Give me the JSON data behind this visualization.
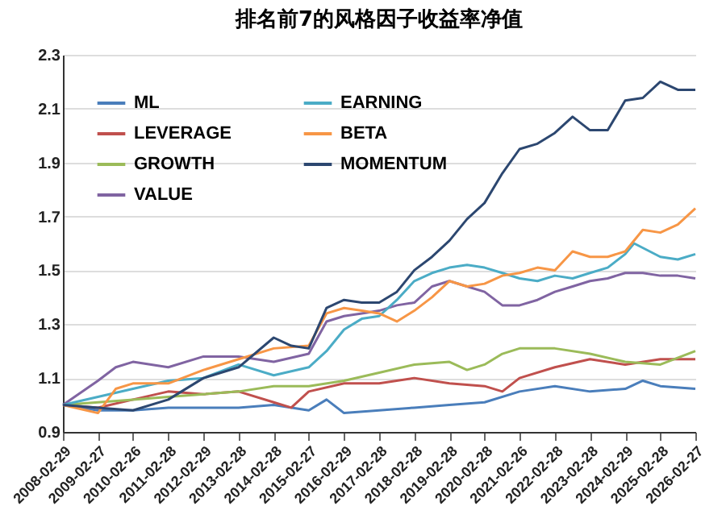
{
  "chart_data": {
    "type": "line",
    "title": "排名前7的风格因子收益率净值",
    "xlim": [
      "2008-02-29",
      "2026-02-27"
    ],
    "xticks": [
      "2008-02-29",
      "2009-02-27",
      "2010-02-26",
      "2011-02-28",
      "2012-02-29",
      "2013-02-28",
      "2014-02-28",
      "2015-02-27",
      "2016-02-29",
      "2017-02-28",
      "2018-02-28",
      "2019-02-28",
      "2020-02-28",
      "2021-02-26",
      "2022-02-28",
      "2023-02-28",
      "2024-02-29",
      "2025-02-28",
      "2026-02-27"
    ],
    "ylim": [
      0.9,
      2.3
    ],
    "yticks": [
      0.9,
      1.1,
      1.3,
      1.5,
      1.7,
      1.9,
      2.1,
      2.3
    ],
    "grid": "y",
    "legend": "top left",
    "line_style": "solid",
    "marker": "none",
    "series": [
      {
        "name": "ML",
        "color": "#4a7ebb",
        "x": [
          "2008-02-29",
          "2009-02-27",
          "2010-02-26",
          "2011-02-28",
          "2012-02-29",
          "2013-02-28",
          "2014-02-28",
          "2015-02-27",
          "2015-08-31",
          "2016-02-29",
          "2017-02-28",
          "2018-02-28",
          "2019-02-28",
          "2020-02-28",
          "2021-02-26",
          "2022-02-28",
          "2023-02-28",
          "2024-02-29",
          "2024-08-30",
          "2025-02-28",
          "2026-02-27"
        ],
        "values": [
          1.0,
          0.98,
          0.98,
          0.99,
          0.99,
          0.99,
          1.0,
          0.98,
          1.02,
          0.97,
          0.98,
          0.99,
          1.0,
          1.01,
          1.05,
          1.07,
          1.05,
          1.06,
          1.09,
          1.07,
          1.06
        ]
      },
      {
        "name": "LEVERAGE",
        "color": "#c0504d",
        "x": [
          "2008-02-29",
          "2009-02-27",
          "2010-02-26",
          "2011-02-28",
          "2012-02-29",
          "2013-02-28",
          "2014-02-28",
          "2014-08-29",
          "2015-02-27",
          "2016-02-29",
          "2017-02-28",
          "2018-02-28",
          "2019-02-28",
          "2020-02-28",
          "2020-08-31",
          "2021-02-26",
          "2022-02-28",
          "2023-02-28",
          "2024-02-29",
          "2025-02-28",
          "2026-02-27"
        ],
        "values": [
          1.0,
          0.99,
          1.02,
          1.05,
          1.04,
          1.05,
          1.01,
          0.99,
          1.05,
          1.08,
          1.08,
          1.1,
          1.08,
          1.07,
          1.05,
          1.1,
          1.14,
          1.17,
          1.15,
          1.17,
          1.17
        ]
      },
      {
        "name": "GROWTH",
        "color": "#9bbb59",
        "x": [
          "2008-02-29",
          "2009-02-27",
          "2010-02-26",
          "2011-02-28",
          "2012-02-29",
          "2013-02-28",
          "2014-02-28",
          "2015-02-27",
          "2016-02-29",
          "2017-02-28",
          "2018-02-28",
          "2019-02-28",
          "2019-08-30",
          "2020-02-28",
          "2020-08-31",
          "2021-02-26",
          "2022-02-28",
          "2023-02-28",
          "2024-02-29",
          "2025-02-28",
          "2026-02-27"
        ],
        "values": [
          1.0,
          1.01,
          1.02,
          1.03,
          1.04,
          1.05,
          1.07,
          1.07,
          1.09,
          1.12,
          1.15,
          1.16,
          1.13,
          1.15,
          1.19,
          1.21,
          1.21,
          1.19,
          1.16,
          1.15,
          1.2
        ]
      },
      {
        "name": "VALUE",
        "color": "#8064a2",
        "x": [
          "2008-02-29",
          "2009-02-27",
          "2009-08-31",
          "2010-02-26",
          "2011-02-28",
          "2012-02-29",
          "2013-02-28",
          "2014-02-28",
          "2015-02-27",
          "2015-08-31",
          "2016-02-29",
          "2016-08-31",
          "2017-02-28",
          "2017-08-31",
          "2018-02-28",
          "2018-08-31",
          "2019-02-28",
          "2019-08-30",
          "2020-02-28",
          "2020-08-31",
          "2021-02-26",
          "2021-08-31",
          "2022-02-28",
          "2022-08-31",
          "2023-02-28",
          "2023-08-31",
          "2024-02-29",
          "2024-08-30",
          "2025-02-28",
          "2025-08-29",
          "2026-02-27"
        ],
        "values": [
          1.0,
          1.09,
          1.14,
          1.16,
          1.14,
          1.18,
          1.18,
          1.16,
          1.19,
          1.31,
          1.33,
          1.34,
          1.35,
          1.37,
          1.38,
          1.44,
          1.46,
          1.44,
          1.42,
          1.37,
          1.37,
          1.39,
          1.42,
          1.44,
          1.46,
          1.47,
          1.49,
          1.49,
          1.48,
          1.48,
          1.47
        ]
      },
      {
        "name": "EARNING",
        "color": "#4bacc6",
        "x": [
          "2008-02-29",
          "2009-02-27",
          "2010-02-26",
          "2011-02-28",
          "2012-02-29",
          "2013-02-28",
          "2014-02-28",
          "2015-02-27",
          "2015-08-31",
          "2016-02-29",
          "2016-08-31",
          "2017-02-28",
          "2017-08-31",
          "2018-02-28",
          "2018-08-31",
          "2019-02-28",
          "2019-08-30",
          "2020-02-28",
          "2020-08-31",
          "2021-02-26",
          "2021-08-31",
          "2022-02-28",
          "2022-08-31",
          "2023-02-28",
          "2023-08-31",
          "2024-02-29",
          "2024-05-31",
          "2025-02-28",
          "2025-08-29",
          "2026-02-27"
        ],
        "values": [
          1.0,
          1.03,
          1.06,
          1.09,
          1.1,
          1.15,
          1.11,
          1.14,
          1.2,
          1.28,
          1.32,
          1.33,
          1.39,
          1.46,
          1.49,
          1.51,
          1.52,
          1.51,
          1.49,
          1.47,
          1.46,
          1.48,
          1.47,
          1.49,
          1.51,
          1.56,
          1.6,
          1.55,
          1.54,
          1.56
        ]
      },
      {
        "name": "BETA",
        "color": "#f79646",
        "x": [
          "2008-02-29",
          "2009-02-27",
          "2009-08-31",
          "2010-02-26",
          "2011-02-28",
          "2012-02-29",
          "2013-02-28",
          "2014-02-28",
          "2015-02-27",
          "2015-08-31",
          "2016-02-29",
          "2016-08-31",
          "2017-02-28",
          "2017-08-31",
          "2018-02-28",
          "2018-08-31",
          "2019-02-28",
          "2019-08-30",
          "2020-02-28",
          "2020-08-31",
          "2021-02-26",
          "2021-08-31",
          "2022-02-28",
          "2022-08-31",
          "2023-02-28",
          "2023-08-31",
          "2024-02-29",
          "2024-08-30",
          "2025-02-28",
          "2025-08-29",
          "2026-02-27"
        ],
        "values": [
          1.0,
          0.97,
          1.06,
          1.08,
          1.08,
          1.13,
          1.17,
          1.21,
          1.22,
          1.34,
          1.36,
          1.35,
          1.34,
          1.31,
          1.35,
          1.4,
          1.46,
          1.44,
          1.45,
          1.48,
          1.49,
          1.51,
          1.5,
          1.57,
          1.55,
          1.55,
          1.57,
          1.65,
          1.64,
          1.67,
          1.73
        ]
      },
      {
        "name": "MOMENTUM",
        "color": "#2c4770",
        "x": [
          "2008-02-29",
          "2009-02-27",
          "2010-02-26",
          "2011-02-28",
          "2012-02-29",
          "2013-02-28",
          "2014-02-28",
          "2014-08-29",
          "2015-02-27",
          "2015-08-31",
          "2016-02-29",
          "2016-08-31",
          "2017-02-28",
          "2017-08-31",
          "2018-02-28",
          "2018-08-31",
          "2019-02-28",
          "2019-08-30",
          "2020-02-28",
          "2020-08-31",
          "2021-02-26",
          "2021-08-31",
          "2022-02-28",
          "2022-08-31",
          "2023-02-28",
          "2023-08-31",
          "2024-02-29",
          "2024-08-30",
          "2025-02-28",
          "2025-08-29",
          "2026-02-27"
        ],
        "values": [
          1.0,
          0.99,
          0.98,
          1.02,
          1.1,
          1.14,
          1.25,
          1.22,
          1.21,
          1.36,
          1.39,
          1.38,
          1.38,
          1.42,
          1.5,
          1.55,
          1.61,
          1.69,
          1.75,
          1.86,
          1.95,
          1.97,
          2.01,
          2.07,
          2.02,
          2.02,
          2.13,
          2.14,
          2.2,
          2.17,
          2.17
        ]
      }
    ]
  }
}
